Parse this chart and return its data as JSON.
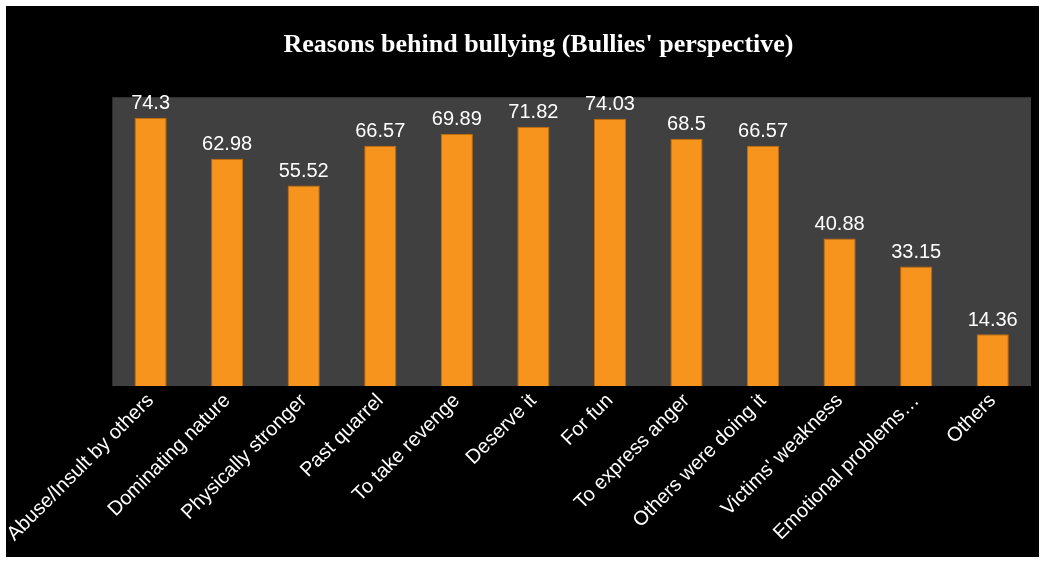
{
  "chart_data": {
    "type": "bar",
    "title": "Reasons behind bullying (Bullies' perspective)",
    "categories": [
      "Abuse/Insult by others",
      "Dominating nature",
      "Physically stronger",
      "Past quarrel",
      "To take revenge",
      "Deserve it",
      "For fun",
      "To express anger",
      "Others were doing it",
      "Victims' weakness",
      "Emotional problems…",
      "Others"
    ],
    "values": [
      74.3,
      62.98,
      55.52,
      66.57,
      69.89,
      71.82,
      74.03,
      68.5,
      66.57,
      40.88,
      33.15,
      14.36
    ],
    "color": "#f7941d",
    "data_labels": true,
    "grid": false,
    "legend": false,
    "tick_labels": "x"
  }
}
